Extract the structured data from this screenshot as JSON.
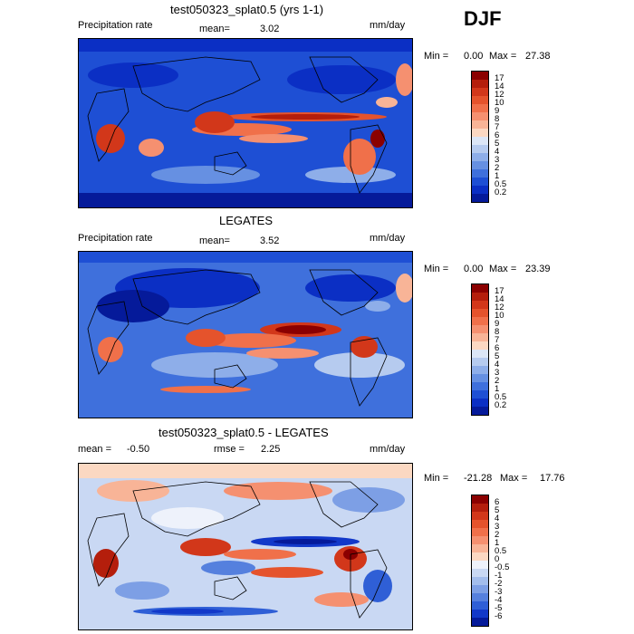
{
  "season": "DJF",
  "panels": [
    {
      "title": "test050323_splat0.5 (yrs 1-1)",
      "left_label": "Precipitation rate",
      "stat1_label": "mean=",
      "stat1_value": "3.02",
      "units": "mm/day",
      "min_label": "Min =",
      "min_value": "0.00",
      "max_label": "Max =",
      "max_value": "27.38"
    },
    {
      "title": "LEGATES",
      "left_label": "Precipitation rate",
      "stat1_label": "mean=",
      "stat1_value": "3.52",
      "units": "mm/day",
      "min_label": "Min =",
      "min_value": "0.00",
      "max_label": "Max =",
      "max_value": "23.39"
    },
    {
      "title": "test050323_splat0.5 - LEGATES",
      "left_label": "mean =",
      "left_value": "-0.50",
      "stat1_label": "rmse =",
      "stat1_value": "2.25",
      "units": "mm/day",
      "min_label": "Min =",
      "min_value": "-21.28",
      "max_label": "Max =",
      "max_value": "17.76"
    }
  ],
  "precip_colorbar": {
    "labels": [
      "17",
      "14",
      "12",
      "10",
      "9",
      "8",
      "7",
      "6",
      "5",
      "4",
      "3",
      "2",
      "1",
      "0.5",
      "0.2"
    ],
    "colors": [
      "#8b0000",
      "#b41e0c",
      "#d2371a",
      "#e5532c",
      "#f0704a",
      "#f59070",
      "#f8b497",
      "#fbd8c2",
      "#dce6f6",
      "#b6cbef",
      "#8eaee9",
      "#6690e2",
      "#3f70dc",
      "#1e4fd4",
      "#0b2fc4",
      "#051a9a"
    ]
  },
  "diff_colorbar": {
    "labels": [
      "6",
      "5",
      "4",
      "3",
      "2",
      "1",
      "0.5",
      "0",
      "-0.5",
      "-1",
      "-2",
      "-3",
      "-4",
      "-5",
      "-6"
    ],
    "colors": [
      "#8b0000",
      "#b41e0c",
      "#d2371a",
      "#e5532c",
      "#f0704a",
      "#f59070",
      "#f8b497",
      "#fbd8c2",
      "#eef2fb",
      "#c9d8f3",
      "#a3bdec",
      "#7d9fe5",
      "#5580de",
      "#2f5fd6",
      "#1238c9",
      "#051a9a"
    ]
  }
}
